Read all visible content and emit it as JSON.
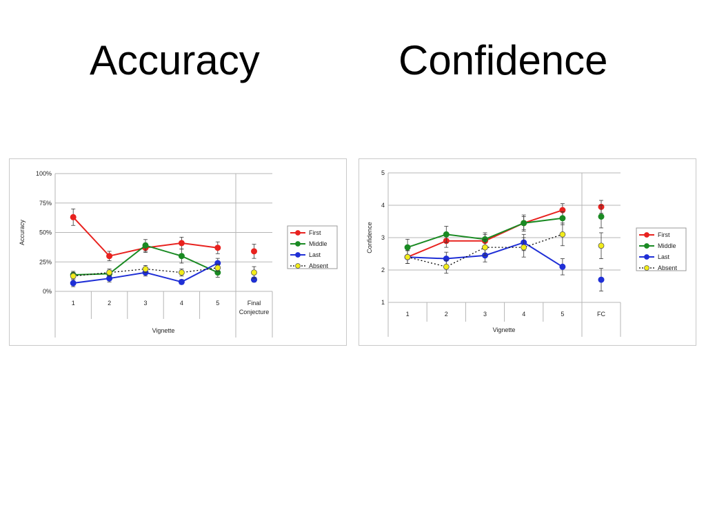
{
  "slide": {
    "title_left": "Accuracy",
    "title_right": "Confidence"
  },
  "colors": {
    "First": "#e8221f",
    "Middle": "#1a8a23",
    "Last": "#1f2fd6",
    "Absent": "#f2ec1a",
    "absent_line": "#000000",
    "grid": "#b5b5b5"
  },
  "chart_data": [
    {
      "type": "line",
      "title": "",
      "xlabel": "Vignette",
      "ylabel": "Accuracy",
      "categories": [
        "1",
        "2",
        "3",
        "4",
        "5"
      ],
      "final_label": [
        "Final",
        "Conjecture"
      ],
      "y_ticks": [
        "0%",
        "25%",
        "50%",
        "75%",
        "100%"
      ],
      "ylim": [
        0,
        100
      ],
      "legend": "right",
      "series": [
        {
          "name": "First",
          "values": [
            63,
            30,
            37,
            41,
            37
          ],
          "errors": [
            7,
            4,
            4,
            5,
            5
          ],
          "final": 34,
          "final_error": 6,
          "line": "solid"
        },
        {
          "name": "Middle",
          "values": [
            14,
            15,
            39,
            30,
            16
          ],
          "errors": [
            3,
            3,
            5,
            6,
            4
          ],
          "final": 10,
          "final_error": 2,
          "line": "solid"
        },
        {
          "name": "Last",
          "values": [
            7,
            11,
            16,
            8,
            24
          ],
          "errors": [
            3,
            3,
            3,
            2,
            4
          ],
          "final": 10,
          "final_error": 2,
          "line": "solid"
        },
        {
          "name": "Absent",
          "values": [
            13,
            16,
            19,
            16,
            20
          ],
          "errors": [
            3,
            3,
            3,
            3,
            3
          ],
          "final": 16,
          "final_error": 5,
          "line": "dotted"
        }
      ]
    },
    {
      "type": "line",
      "title": "",
      "xlabel": "Vignette",
      "ylabel": "Confidence",
      "categories": [
        "1",
        "2",
        "3",
        "4",
        "5"
      ],
      "final_label": [
        "FC"
      ],
      "y_ticks": [
        "1",
        "2",
        "3",
        "4",
        "5"
      ],
      "ylim": [
        1,
        5
      ],
      "legend": "right",
      "series": [
        {
          "name": "First",
          "values": [
            2.4,
            2.9,
            2.9,
            3.45,
            3.85
          ],
          "errors": [
            0.2,
            0.2,
            0.2,
            0.25,
            0.2
          ],
          "final": 3.95,
          "final_error": 0.2,
          "line": "solid"
        },
        {
          "name": "Middle",
          "values": [
            2.7,
            3.1,
            2.95,
            3.45,
            3.6
          ],
          "errors": [
            0.25,
            0.25,
            0.2,
            0.2,
            0.2
          ],
          "final": 3.65,
          "final_error": 0.35,
          "line": "solid"
        },
        {
          "name": "Last",
          "values": [
            2.4,
            2.35,
            2.45,
            2.85,
            2.1
          ],
          "errors": [
            0.2,
            0.2,
            0.2,
            0.25,
            0.25
          ],
          "final": 1.7,
          "final_error": 0.35,
          "line": "solid"
        },
        {
          "name": "Absent",
          "values": [
            2.4,
            2.1,
            2.7,
            2.7,
            3.1
          ],
          "errors": [
            0.2,
            0.2,
            0.25,
            0.3,
            0.35
          ],
          "final": 2.75,
          "final_error": 0.4,
          "line": "dotted"
        }
      ]
    }
  ]
}
